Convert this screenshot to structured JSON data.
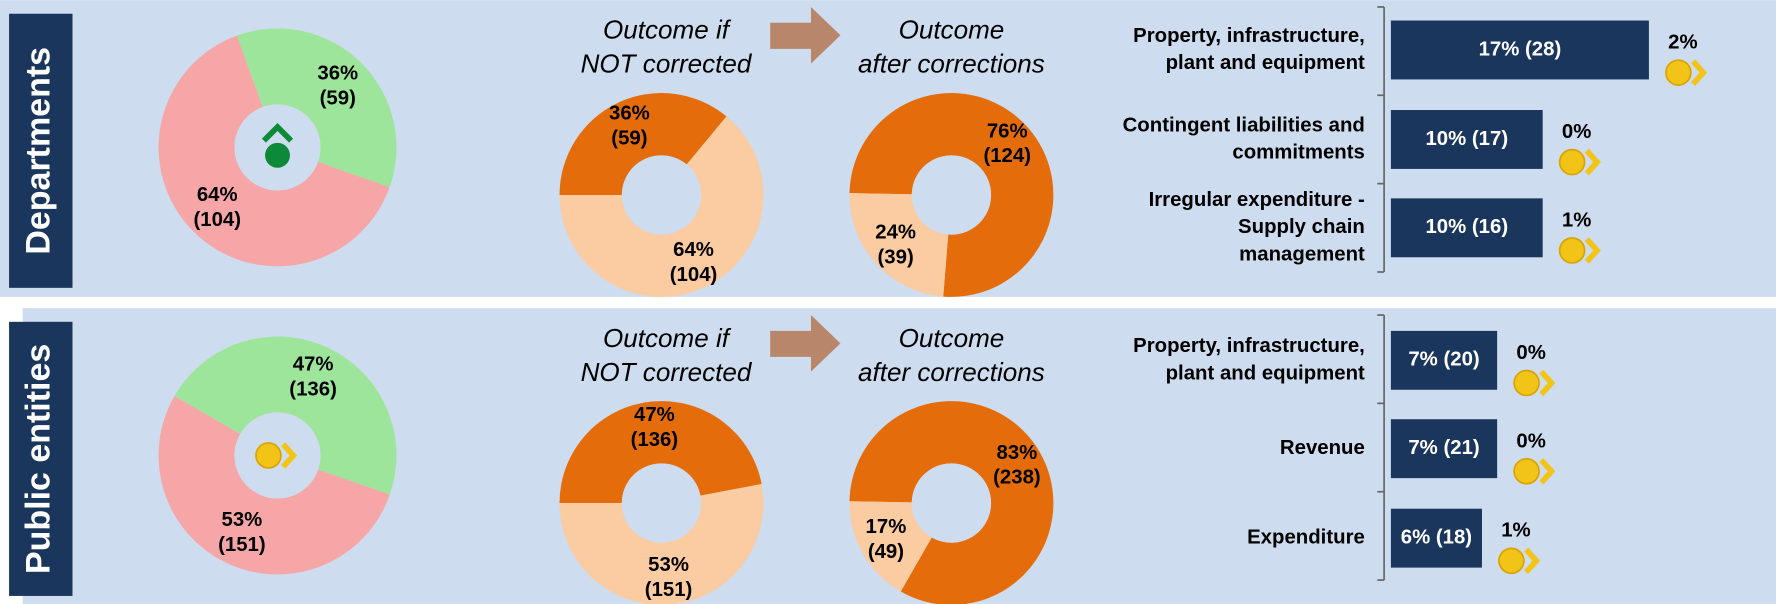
{
  "panels": [
    {
      "title": "Departments",
      "main": {
        "segments": [
          {
            "value": 36,
            "label": "36%",
            "count": 59,
            "count_label": "(59)",
            "color": "#9de59b"
          },
          {
            "value": 64,
            "label": "64%",
            "count": 104,
            "count_label": "(104)",
            "color": "#f6a6a6"
          }
        ]
      },
      "before": {
        "heading": [
          "Outcome if",
          "NOT corrected"
        ],
        "segments": [
          {
            "value": 36,
            "label": "36%",
            "count": 59,
            "count_label": "(59)",
            "color": "#e46c0a"
          },
          {
            "value": 64,
            "label": "64%",
            "count": 104,
            "count_label": "(104)",
            "color": "#fbcba1"
          }
        ]
      },
      "after": {
        "heading": [
          "Outcome",
          "after corrections"
        ],
        "segments": [
          {
            "value": 76,
            "label": "76%",
            "count": 124,
            "count_label": "(124)",
            "color": "#e46c0a"
          },
          {
            "value": 24,
            "label": "24%",
            "count": 39,
            "count_label": "(39)",
            "color": "#fbcba1"
          }
        ]
      },
      "bars": [
        {
          "name": [
            "Property, infrastructure,",
            "plant and equipment"
          ],
          "value": 17,
          "count": 28,
          "value_label": "17% (28)",
          "change_label": "2%"
        },
        {
          "name": [
            "Contingent liabilities and",
            "commitments"
          ],
          "value": 10,
          "count": 17,
          "value_label": "10% (17)",
          "change_label": "0%"
        },
        {
          "name": [
            "Irregular expenditure -",
            "Supply chain",
            "management"
          ],
          "value": 10,
          "count": 16,
          "value_label": "10% (16)",
          "change_label": "1%"
        }
      ]
    },
    {
      "title": "Public entities",
      "main": {
        "segments": [
          {
            "value": 47,
            "label": "47%",
            "count": 136,
            "count_label": "(136)",
            "color": "#9de59b"
          },
          {
            "value": 53,
            "label": "53%",
            "count": 151,
            "count_label": "(151)",
            "color": "#f6a6a6"
          }
        ]
      },
      "before": {
        "heading": [
          "Outcome if",
          "NOT corrected"
        ],
        "segments": [
          {
            "value": 47,
            "label": "47%",
            "count": 136,
            "count_label": "(136)",
            "color": "#e46c0a"
          },
          {
            "value": 53,
            "label": "53%",
            "count": 151,
            "count_label": "(151)",
            "color": "#fbcba1"
          }
        ]
      },
      "after": {
        "heading": [
          "Outcome",
          "after corrections"
        ],
        "segments": [
          {
            "value": 83,
            "label": "83%",
            "count": 238,
            "count_label": "(238)",
            "color": "#e46c0a"
          },
          {
            "value": 17,
            "label": "17%",
            "count": 49,
            "count_label": "(49)",
            "color": "#fbcba1"
          }
        ]
      },
      "bars": [
        {
          "name": [
            "Property, infrastructure,",
            "plant and equipment"
          ],
          "value": 7,
          "count": 20,
          "value_label": "7% (20)",
          "change_label": "0%"
        },
        {
          "name": [
            "Revenue"
          ],
          "value": 7,
          "count": 21,
          "value_label": "7% (21)",
          "change_label": "0%"
        },
        {
          "name": [
            "Expenditure"
          ],
          "value": 6,
          "count": 18,
          "value_label": "6% (18)",
          "change_label": "1%"
        }
      ]
    }
  ]
}
